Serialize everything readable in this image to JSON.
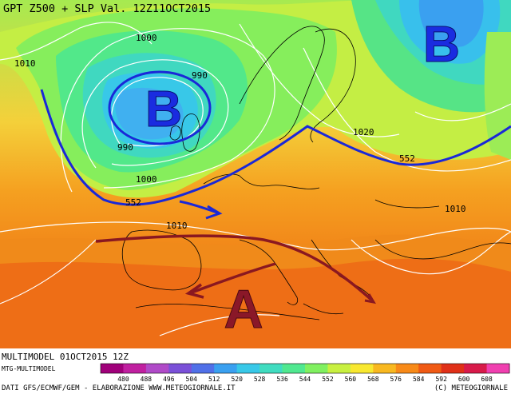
{
  "header": {
    "title": "GPT Z500 + SLP Val. 12Z11OCT2015"
  },
  "footer": {
    "model_run": "MULTIMODEL 01OCT2015 12Z",
    "model_name": "MTG-MULTIMODEL",
    "source": "DATI GFS/ECMWF/GEM - ELABORAZIONE WWW.METEOGIORNALE.IT",
    "copyright": "(C) METEOGIORNALE"
  },
  "legend": {
    "values": [
      "480",
      "488",
      "496",
      "504",
      "512",
      "520",
      "528",
      "536",
      "544",
      "552",
      "560",
      "568",
      "576",
      "584",
      "592",
      "600",
      "608"
    ],
    "colors": [
      "#a0007a",
      "#c020a0",
      "#b04ac8",
      "#7a50d8",
      "#5070e8",
      "#3aa0f0",
      "#38c8e8",
      "#40dcc0",
      "#50e890",
      "#80f060",
      "#c8f040",
      "#f8e830",
      "#f8b820",
      "#f88a18",
      "#f05a14",
      "#e03018",
      "#d81a4a",
      "#f040b0"
    ]
  },
  "pressure_labels": [
    "1000",
    "990",
    "1010",
    "990",
    "1000",
    "1020",
    "1010",
    "1010"
  ],
  "geopotential_labels": [
    "552",
    "552"
  ],
  "systems": [
    {
      "name": "B",
      "type": "low"
    },
    {
      "name": "B",
      "type": "low"
    },
    {
      "name": "A",
      "type": "high"
    }
  ]
}
